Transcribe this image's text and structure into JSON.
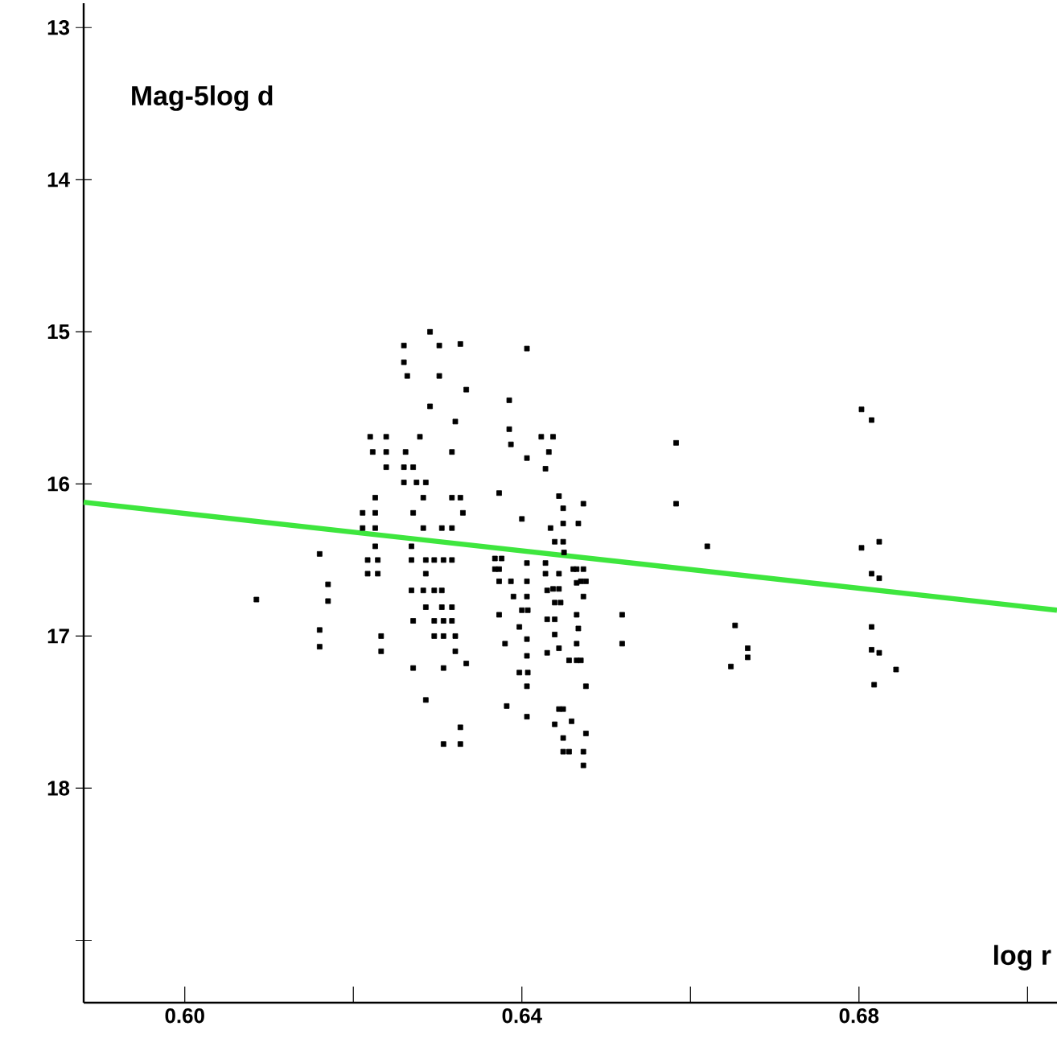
{
  "chart_data": {
    "type": "scatter",
    "xlabel": "log r",
    "ylabel": "Mag-5log d",
    "xlim": [
      0.588,
      0.7035
    ],
    "ylim": [
      19.41,
      12.84
    ],
    "xticks": [
      {
        "value": 0.6,
        "label": "0.60"
      },
      {
        "value": 0.62,
        "label": null
      },
      {
        "value": 0.64,
        "label": "0.64"
      },
      {
        "value": 0.66,
        "label": null
      },
      {
        "value": 0.68,
        "label": "0.68"
      },
      {
        "value": 0.7,
        "label": null
      }
    ],
    "yticks": [
      13,
      14,
      15,
      16,
      17,
      18,
      {
        "value": 19,
        "label": null
      }
    ],
    "series": [
      {
        "marker": "square",
        "color": "#000000",
        "x": [
          0.6291,
          0.626,
          0.6302,
          0.6327,
          0.626,
          0.6264,
          0.6302,
          0.6334,
          0.6291,
          0.6321,
          0.622,
          0.6239,
          0.6279,
          0.6223,
          0.6239,
          0.6262,
          0.6317,
          0.6239,
          0.626,
          0.6271,
          0.626,
          0.6275,
          0.6286,
          0.6226,
          0.6283,
          0.6317,
          0.6327,
          0.6211,
          0.6226,
          0.6271,
          0.633,
          0.6211,
          0.6226,
          0.6283,
          0.6305,
          0.6317,
          0.6226,
          0.6269,
          0.616,
          0.6217,
          0.6229,
          0.6269,
          0.6286,
          0.6296,
          0.6307,
          0.6317,
          0.6217,
          0.6229,
          0.6286,
          0.617,
          0.6269,
          0.6283,
          0.6296,
          0.6305,
          0.617,
          0.6085,
          0.6286,
          0.6305,
          0.6317,
          0.616,
          0.6271,
          0.6296,
          0.6307,
          0.6317,
          0.6233,
          0.6296,
          0.6307,
          0.6321,
          0.616,
          0.6233,
          0.6321,
          0.6334,
          0.6271,
          0.6307,
          0.6286,
          0.6327,
          0.6307,
          0.6327,
          0.6406,
          0.6385,
          0.6385,
          0.6387,
          0.6423,
          0.6437,
          0.6432,
          0.6406,
          0.6428,
          0.6583,
          0.6373,
          0.6583,
          0.6444,
          0.6449,
          0.6473,
          0.64,
          0.6434,
          0.6449,
          0.6467,
          0.6439,
          0.6449,
          0.645,
          0.6368,
          0.6376,
          0.6428,
          0.6473,
          0.6368,
          0.6373,
          0.6406,
          0.6461,
          0.6465,
          0.6428,
          0.6444,
          0.6373,
          0.6387,
          0.6406,
          0.6465,
          0.647,
          0.6476,
          0.639,
          0.6406,
          0.643,
          0.6437,
          0.6444,
          0.6473,
          0.64,
          0.6407,
          0.6439,
          0.6446,
          0.6373,
          0.6465,
          0.6519,
          0.6397,
          0.643,
          0.6439,
          0.6467,
          0.6406,
          0.6439,
          0.638,
          0.6465,
          0.6444,
          0.643,
          0.6519,
          0.6406,
          0.6456,
          0.6465,
          0.647,
          0.6397,
          0.6407,
          0.6406,
          0.6476,
          0.6382,
          0.6406,
          0.6444,
          0.6449,
          0.6459,
          0.6439,
          0.6476,
          0.6449,
          0.6449,
          0.6456,
          0.6473,
          0.6473,
          0.662,
          0.6803,
          0.6815,
          0.6803,
          0.6824,
          0.6815,
          0.6824,
          0.6653,
          0.6668,
          0.6668,
          0.6648,
          0.6815,
          0.6815,
          0.6824,
          0.6844,
          0.6818
        ],
        "values": [
          15.0,
          15.09,
          15.09,
          15.08,
          15.2,
          15.29,
          15.29,
          15.38,
          15.49,
          15.59,
          15.69,
          15.69,
          15.69,
          15.79,
          15.79,
          15.79,
          15.79,
          15.89,
          15.89,
          15.89,
          15.99,
          15.99,
          15.99,
          16.09,
          16.09,
          16.09,
          16.09,
          16.19,
          16.19,
          16.19,
          16.19,
          16.29,
          16.29,
          16.29,
          16.29,
          16.29,
          16.41,
          16.41,
          16.46,
          16.5,
          16.5,
          16.5,
          16.5,
          16.5,
          16.5,
          16.5,
          16.59,
          16.59,
          16.59,
          16.66,
          16.7,
          16.7,
          16.7,
          16.7,
          16.77,
          16.76,
          16.81,
          16.81,
          16.81,
          16.96,
          16.9,
          16.9,
          16.9,
          16.9,
          17.0,
          17.0,
          17.0,
          17.0,
          17.07,
          17.1,
          17.1,
          17.18,
          17.21,
          17.21,
          17.42,
          17.6,
          17.71,
          17.71,
          15.11,
          15.45,
          15.64,
          15.74,
          15.69,
          15.69,
          15.79,
          15.83,
          15.9,
          15.73,
          16.06,
          16.13,
          16.08,
          16.16,
          16.13,
          16.23,
          16.29,
          16.26,
          16.26,
          16.38,
          16.38,
          16.45,
          16.49,
          16.49,
          16.52,
          16.56,
          16.56,
          16.56,
          16.52,
          16.56,
          16.56,
          16.59,
          16.59,
          16.64,
          16.64,
          16.64,
          16.65,
          16.64,
          16.64,
          16.74,
          16.74,
          16.7,
          16.69,
          16.69,
          16.74,
          16.83,
          16.83,
          16.78,
          16.78,
          16.86,
          16.86,
          16.86,
          16.94,
          16.89,
          16.89,
          16.95,
          17.02,
          16.99,
          17.05,
          17.05,
          17.08,
          17.11,
          17.05,
          17.13,
          17.16,
          17.16,
          17.16,
          17.24,
          17.24,
          17.33,
          17.33,
          17.46,
          17.53,
          17.48,
          17.48,
          17.56,
          17.58,
          17.64,
          17.67,
          17.76,
          17.76,
          17.76,
          17.85,
          16.41,
          15.51,
          15.58,
          16.42,
          16.38,
          16.59,
          16.62,
          16.93,
          17.08,
          17.14,
          17.2,
          16.94,
          17.09,
          17.11,
          17.22,
          17.32
        ]
      },
      {
        "type": "line",
        "marker": "none",
        "line_style": "solid",
        "color": "#3ee63e",
        "x": [
          0.588,
          0.7035
        ],
        "values": [
          16.12,
          16.83
        ]
      }
    ]
  }
}
